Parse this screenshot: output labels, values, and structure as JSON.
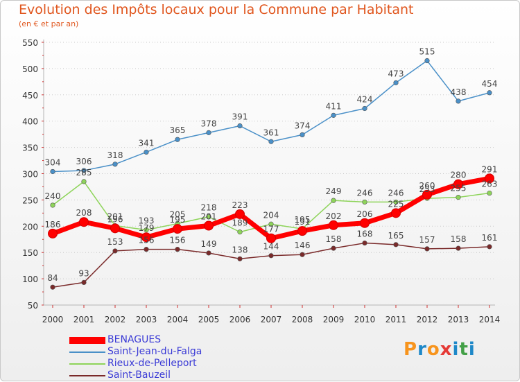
{
  "header": {
    "title": "Evolution des Impôts locaux pour la Commune par Habitant",
    "subtitle": "(en € et par an)"
  },
  "logo": {
    "letters": [
      "P",
      "r",
      "o",
      "x",
      "i",
      "t",
      "i"
    ],
    "colors": [
      "#f7941d",
      "#1e88c8",
      "#f7941d",
      "#e53935",
      "#1e88c8",
      "#43a047",
      "#1e88c8"
    ]
  },
  "chart_data": {
    "type": "line",
    "title": "Evolution des Impôts locaux pour la Commune par Habitant",
    "subtitle": "(en € et par an)",
    "x": [
      2000,
      2001,
      2002,
      2003,
      2004,
      2005,
      2006,
      2007,
      2008,
      2009,
      2010,
      2011,
      2012,
      2013,
      2014
    ],
    "x_tick_labels": [
      "2000",
      "2001",
      "2002",
      "2003",
      "2004",
      "2005",
      "2006",
      "2007",
      "2008",
      "2009",
      "2010",
      "2011",
      "2012",
      "2013",
      "2014"
    ],
    "ylim": [
      50,
      550
    ],
    "y_ticks": [
      50,
      100,
      150,
      200,
      250,
      300,
      350,
      400,
      450,
      500,
      550
    ],
    "y_tick_labels": [
      "50",
      "100",
      "150",
      "200",
      "250",
      "300",
      "350",
      "400",
      "450",
      "500",
      "550"
    ],
    "grid": "horizontal-dotted",
    "legend_position": "bottom-left",
    "series": [
      {
        "name": "BENAGUES",
        "color": "#ff0000",
        "values": [
          186,
          208,
          196,
          179,
          195,
          201,
          223,
          177,
          191,
          202,
          206,
          225,
          260,
          280,
          291
        ],
        "labels": [
          "186",
          "208",
          "196",
          "179",
          "195",
          "201",
          "223",
          "177",
          "191",
          "202",
          "206",
          "225",
          "260",
          "280",
          "291"
        ]
      },
      {
        "name": "Saint-Jean-du-Falga",
        "color": "#4a90c8",
        "values": [
          304,
          306,
          318,
          341,
          365,
          378,
          391,
          361,
          374,
          411,
          424,
          473,
          515,
          438,
          454
        ],
        "labels": [
          "304",
          "306",
          "318",
          "341",
          "365",
          "378",
          "391",
          "361",
          "374",
          "411",
          "424",
          "473",
          "515",
          "438",
          "454"
        ]
      },
      {
        "name": "Rieux-de-Pelleport",
        "color": "#8ed45a",
        "values": [
          240,
          285,
          201,
          193,
          205,
          218,
          189,
          204,
          195,
          249,
          246,
          246,
          253,
          255,
          263
        ],
        "labels": [
          "240",
          "285",
          "201",
          "193",
          "205",
          "218",
          "189",
          "204",
          "195",
          "249",
          "246",
          "246",
          "253",
          "255",
          "263"
        ]
      },
      {
        "name": "Saint-Bauzeil",
        "color": "#7a2a2a",
        "values": [
          84,
          93,
          153,
          156,
          156,
          149,
          138,
          144,
          146,
          158,
          168,
          165,
          157,
          158,
          161
        ],
        "labels": [
          "84",
          "93",
          "153",
          "156",
          "156",
          "149",
          "138",
          "144",
          "146",
          "158",
          "168",
          "165",
          "157",
          "158",
          "161"
        ]
      }
    ]
  }
}
